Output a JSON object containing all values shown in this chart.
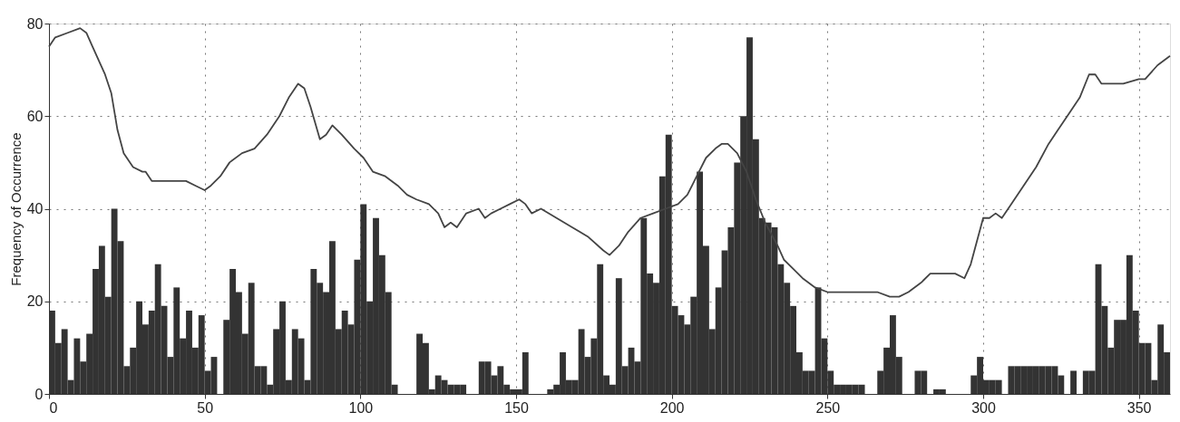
{
  "chart_data": {
    "type": "histogram",
    "ylabel": "Frequency of Occurrence",
    "bins": [
      0,
      2,
      4,
      6,
      8,
      10,
      12,
      14,
      16,
      18,
      20,
      22,
      24,
      26,
      28,
      30,
      32,
      34,
      36,
      38,
      40,
      42,
      44,
      46,
      48,
      50,
      52,
      54,
      56,
      58,
      60,
      62,
      64,
      66,
      68,
      70,
      72,
      74,
      76,
      78,
      80,
      82,
      84,
      86,
      88,
      90,
      92,
      94,
      96,
      98,
      100,
      102,
      104,
      106,
      108,
      110,
      112,
      114,
      116,
      118,
      120,
      122,
      124,
      126,
      128,
      130,
      132,
      134,
      136,
      138,
      140,
      142,
      144,
      146,
      148,
      150,
      152,
      154,
      156,
      158,
      160,
      162,
      164,
      166,
      168,
      170,
      172,
      174,
      176,
      178,
      180,
      182,
      184,
      186,
      188,
      190,
      192,
      194,
      196,
      198,
      200,
      202,
      204,
      206,
      208,
      210,
      212,
      214,
      216,
      218,
      220,
      222,
      224,
      226,
      228,
      230,
      232,
      234,
      236,
      238,
      240,
      242,
      244,
      246,
      248,
      250,
      252,
      254,
      256,
      258,
      260,
      262,
      264,
      266,
      268,
      270,
      272,
      274,
      276,
      278,
      280,
      282,
      284,
      286,
      288,
      290,
      292,
      294,
      296,
      298,
      300,
      302,
      304,
      306,
      308,
      310,
      312,
      314,
      316,
      318,
      320,
      322,
      324,
      326,
      328,
      330,
      332,
      334,
      336,
      338,
      340,
      342,
      344,
      346,
      348,
      350,
      352,
      354,
      356,
      358,
      360
    ],
    "values": [
      18,
      11,
      14,
      3,
      12,
      7,
      13,
      27,
      32,
      21,
      40,
      33,
      6,
      10,
      20,
      15,
      18,
      28,
      19,
      8,
      23,
      12,
      18,
      10,
      17,
      5,
      8,
      0,
      16,
      27,
      22,
      13,
      24,
      6,
      6,
      2,
      14,
      20,
      3,
      14,
      12,
      3,
      27,
      24,
      22,
      33,
      14,
      18,
      15,
      29,
      41,
      20,
      38,
      30,
      22,
      2,
      0,
      0,
      0,
      13,
      11,
      1,
      4,
      3,
      2,
      2,
      2,
      0,
      0,
      7,
      7,
      4,
      6,
      2,
      1,
      1,
      9,
      0,
      0,
      0,
      1,
      2,
      9,
      3,
      3,
      14,
      8,
      12,
      28,
      4,
      2,
      25,
      6,
      10,
      7,
      38,
      26,
      24,
      47,
      56,
      19,
      17,
      15,
      21,
      48,
      32,
      14,
      23,
      31,
      36,
      50,
      60,
      77,
      55,
      38,
      37,
      36,
      28,
      24,
      19,
      9,
      5,
      5,
      23,
      12,
      5,
      2,
      2,
      2,
      2,
      2,
      0,
      0,
      5,
      10,
      17,
      8,
      0,
      0,
      5,
      5,
      0,
      1,
      1,
      0,
      0,
      0,
      0,
      4,
      8,
      3,
      3,
      3,
      0,
      6,
      6,
      6,
      6,
      6,
      6,
      6,
      6,
      4,
      0,
      5,
      0,
      5,
      5,
      28,
      19,
      10,
      16,
      16,
      30,
      18,
      11,
      11,
      3,
      15,
      9
    ],
    "color": "#333333",
    "series": [
      {
        "type": "line",
        "color": "#444444",
        "x": [
          0,
          2,
          6,
          10,
          12,
          14,
          18,
          20,
          22,
          24,
          27,
          30,
          31,
          33,
          36,
          40,
          44,
          47,
          50,
          52,
          55,
          58,
          62,
          66,
          70,
          74,
          77,
          80,
          82,
          84,
          87,
          89,
          91,
          94,
          98,
          101,
          104,
          108,
          112,
          115,
          118,
          122,
          125,
          127,
          129,
          131,
          134,
          138,
          140,
          142,
          145,
          148,
          151,
          153,
          155,
          158,
          163,
          168,
          173,
          178,
          180,
          183,
          186,
          190,
          194,
          198,
          202,
          205,
          208,
          211,
          214,
          216,
          218,
          221,
          224,
          227,
          230,
          234,
          236,
          239,
          242,
          246,
          250,
          254,
          257,
          262,
          266,
          270,
          273,
          276,
          280,
          283,
          287,
          291,
          294,
          296,
          298,
          300,
          302,
          304,
          306,
          309,
          313,
          317,
          321,
          324,
          327,
          331,
          334,
          336,
          338,
          341,
          345,
          350,
          352,
          356,
          360
        ],
        "values": [
          75,
          77,
          78,
          79,
          78,
          75,
          69,
          65,
          57,
          52,
          49,
          48,
          48,
          46,
          46,
          46,
          46,
          45,
          44,
          45,
          47,
          50,
          52,
          53,
          56,
          60,
          64,
          67,
          66,
          62,
          55,
          56,
          58,
          56,
          53,
          51,
          48,
          47,
          45,
          43,
          42,
          41,
          39,
          36,
          37,
          36,
          39,
          40,
          38,
          39,
          40,
          41,
          42,
          41,
          39,
          40,
          38,
          36,
          34,
          31,
          30,
          32,
          35,
          38,
          39,
          40,
          41,
          43,
          47,
          51,
          53,
          54,
          54,
          52,
          48,
          42,
          37,
          32,
          29,
          27,
          25,
          23,
          22,
          22,
          22,
          22,
          22,
          21,
          21,
          22,
          24,
          26,
          26,
          26,
          25,
          28,
          33,
          38,
          38,
          39,
          38,
          41,
          45,
          49,
          54,
          57,
          60,
          64,
          69,
          69,
          67,
          67,
          67,
          68,
          68,
          71,
          73
        ]
      }
    ],
    "xlim": [
      0,
      360
    ],
    "xticks": [
      0,
      50,
      100,
      150,
      200,
      250,
      300,
      350
    ],
    "ylim": [
      0,
      80
    ],
    "yticks": [
      0,
      20,
      40,
      60,
      80
    ],
    "grid": true
  }
}
